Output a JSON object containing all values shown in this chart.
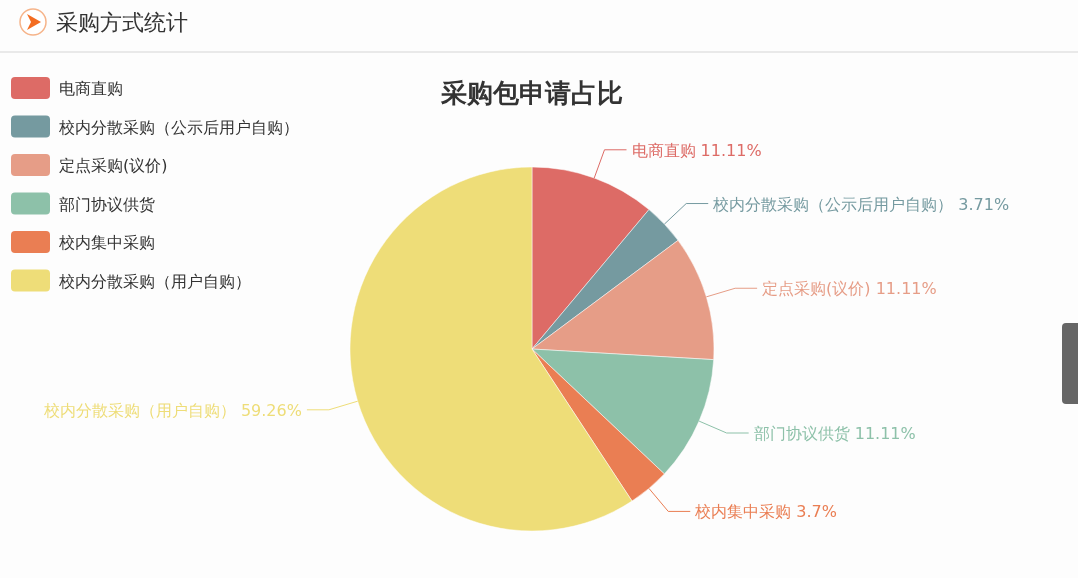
{
  "chart_data": {
    "type": "pie",
    "title": "采购包申请占比",
    "annotations": [
      "采购方式统计"
    ],
    "categories": [
      "电商直购",
      "校内分散采购（公示后用户自购）",
      "定点采购(议价)",
      "部门协议供货",
      "校内集中采购",
      "校内分散采购（用户自购）"
    ],
    "values": [
      11.11,
      3.71,
      11.11,
      11.11,
      3.7,
      59.26
    ],
    "colors": [
      "#dd6b66",
      "#759aa0",
      "#e69d87",
      "#8dc1a9",
      "#ea7e53",
      "#eedd78"
    ],
    "value_labels": [
      "11.11%",
      "3.71%",
      "11.11%",
      "11.11%",
      "3.7%",
      "59.26%"
    ],
    "legend": "top left"
  }
}
